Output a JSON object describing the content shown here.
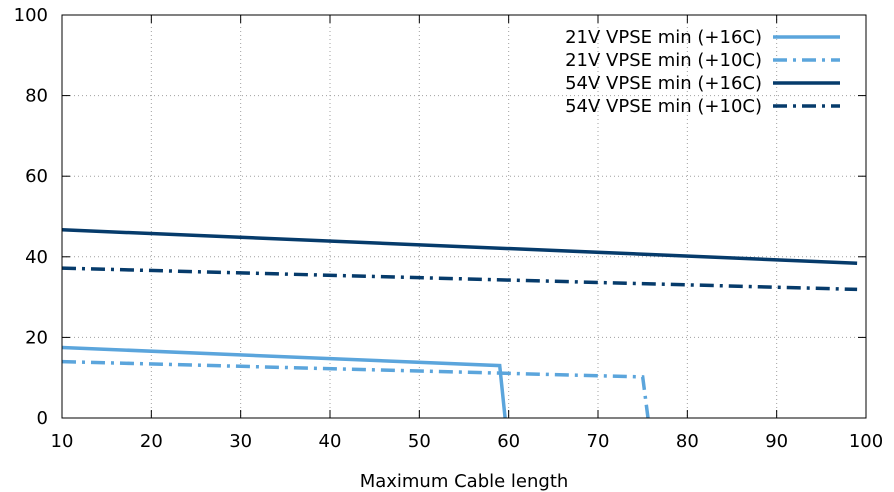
{
  "chart_data": {
    "type": "line",
    "title": "",
    "xlabel": "Maximum Cable length",
    "ylabel": "",
    "xlim": [
      10,
      100
    ],
    "ylim": [
      0,
      100
    ],
    "x_ticks": [
      10,
      20,
      30,
      40,
      50,
      60,
      70,
      80,
      90,
      100
    ],
    "y_ticks": [
      0,
      20,
      40,
      60,
      80,
      100
    ],
    "grid": true,
    "legend_position": "top-right",
    "series": [
      {
        "name": "21V VPSE min (+16C)",
        "color": "#5ba5dc",
        "dash": "solid",
        "x": [
          10,
          59,
          59.6
        ],
        "y": [
          17.5,
          13,
          0
        ]
      },
      {
        "name": "21V VPSE min (+10C)",
        "color": "#5ba5dc",
        "dash": "dash-dot",
        "x": [
          10,
          75,
          75.6
        ],
        "y": [
          14,
          10.2,
          0
        ]
      },
      {
        "name": "54V VPSE min (+16C)",
        "color": "#063b6b",
        "dash": "solid",
        "x": [
          10,
          99
        ],
        "y": [
          46.7,
          38.4
        ]
      },
      {
        "name": "54V VPSE min (+10C)",
        "color": "#063b6b",
        "dash": "dash-dot",
        "x": [
          10,
          99
        ],
        "y": [
          37.2,
          31.9
        ]
      }
    ]
  }
}
